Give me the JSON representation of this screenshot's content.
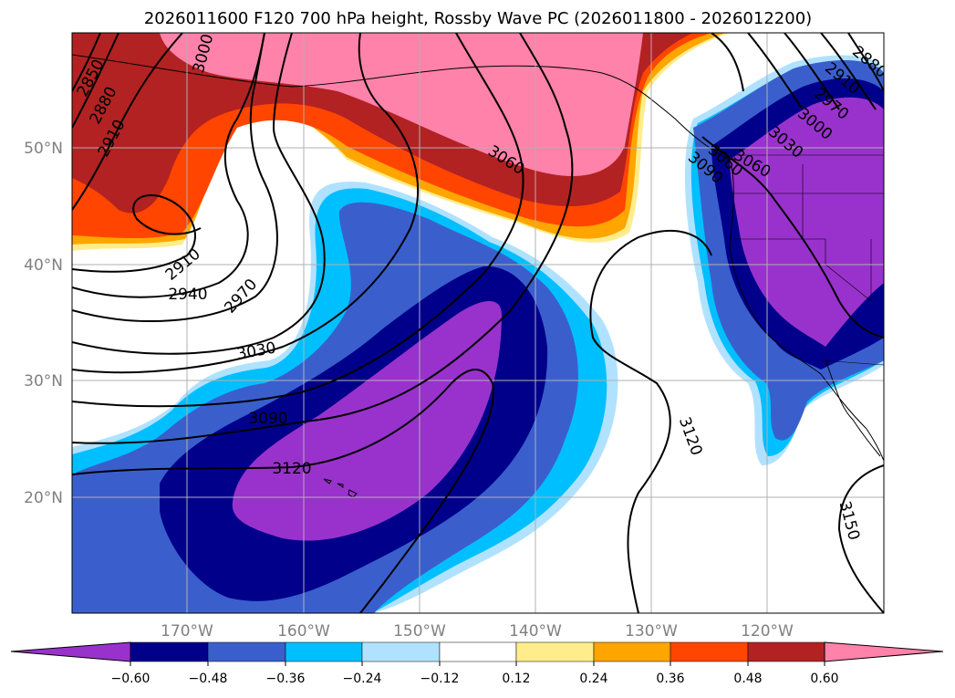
{
  "map": {
    "title": "2026011600 F120 700 hPa height, Rossby Wave PC (2026011800 - 2026012200)",
    "lat_labels": [
      "50°N",
      "40°N",
      "30°N",
      "20°N"
    ],
    "lon_labels": [
      "170°W",
      "160°W",
      "150°W",
      "140°W",
      "130°W",
      "120°W"
    ],
    "contour_labels": [
      "2850",
      "2880",
      "2910",
      "2910",
      "2940",
      "2970",
      "3000",
      "3030",
      "3060",
      "3060",
      "3090",
      "3120",
      "3120",
      "3150",
      "2880",
      "2910",
      "2970",
      "3000",
      "3030",
      "3060",
      "3090"
    ]
  },
  "colorbar": {
    "tick_labels": [
      "−0.60",
      "−0.48",
      "−0.36",
      "−0.24",
      "−0.12",
      "0.12",
      "0.24",
      "0.36",
      "0.48",
      "0.60"
    ],
    "colors": [
      "#9932cc",
      "#00008b",
      "#3a5fcd",
      "#00bfff",
      "#b0e2ff",
      "#ffffff",
      "#ffec8b",
      "#ffa500",
      "#ff4500",
      "#b22222",
      "#ff82ab"
    ]
  },
  "styles": {
    "grid_color": "#b0b0b0",
    "contour_color": "#000000",
    "land_outline_color": "#000000"
  }
}
